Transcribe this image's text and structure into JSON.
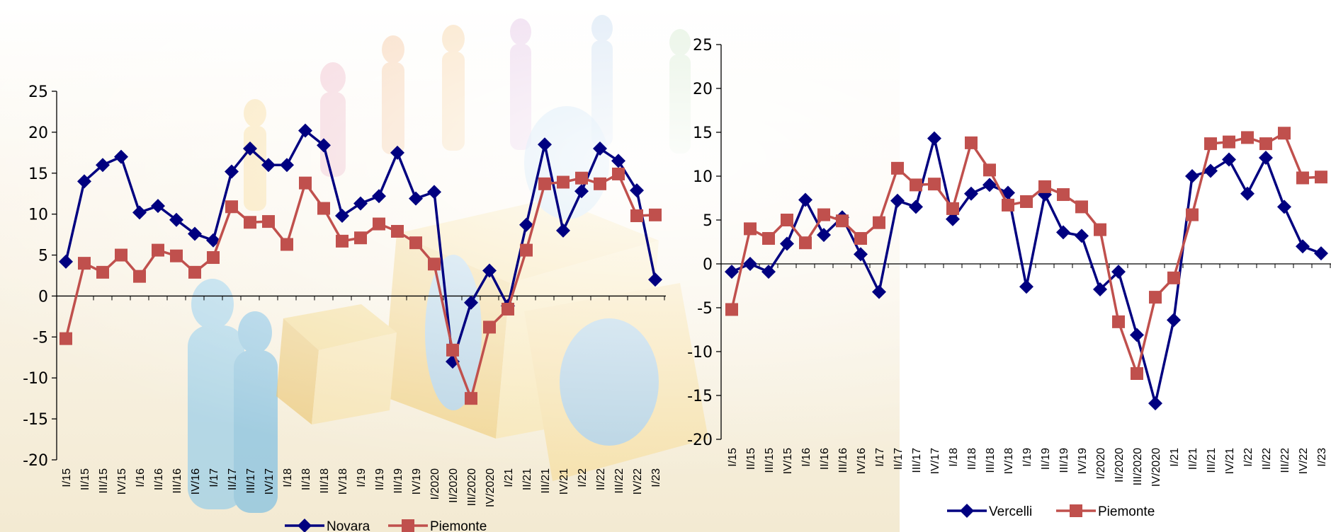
{
  "chart_data": [
    {
      "type": "line",
      "title": "",
      "xlabel": "",
      "ylabel": "",
      "ylim": [
        -20,
        25
      ],
      "yticks": [
        25,
        20,
        15,
        10,
        5,
        0,
        -5,
        -10,
        -15,
        -20
      ],
      "grid": false,
      "legend_position": "bottom",
      "categories": [
        "I/15",
        "II/15",
        "III/15",
        "IV/15",
        "I/16",
        "II/16",
        "III/16",
        "IV/16",
        "I/17",
        "II/17",
        "III/17",
        "IV/17",
        "I/18",
        "II/18",
        "III/18",
        "IV/18",
        "I/19",
        "II/19",
        "III/19",
        "IV/19",
        "I/2020",
        "II/2020",
        "III/2020",
        "IV/2020",
        "I/21",
        "II/21",
        "III/21",
        "IV/21",
        "I/22",
        "II/22",
        "III/22",
        "IV/22",
        "I/23"
      ],
      "series": [
        {
          "name": "Novara",
          "color": "#000080",
          "marker": "diamond",
          "values": [
            4.2,
            14,
            16,
            17,
            10.2,
            11,
            9.3,
            7.6,
            6.8,
            15.2,
            18,
            16,
            16,
            20.2,
            18.4,
            9.8,
            11.3,
            12.2,
            17.5,
            11.9,
            12.7,
            -8,
            -0.8,
            3.1,
            -1.2,
            8.7,
            18.5,
            8,
            12.8,
            18,
            16.5,
            12.9,
            2
          ]
        },
        {
          "name": "Piemonte",
          "color": "#C0504D",
          "marker": "square",
          "values": [
            -5.2,
            4,
            2.9,
            5,
            2.4,
            5.6,
            4.9,
            2.9,
            4.7,
            10.9,
            9,
            9.1,
            6.3,
            13.8,
            10.7,
            6.7,
            7.1,
            8.8,
            7.9,
            6.5,
            3.9,
            -6.6,
            -12.5,
            -3.8,
            -1.6,
            5.6,
            13.7,
            13.9,
            14.4,
            13.7,
            14.9,
            9.8,
            9.9
          ]
        }
      ]
    },
    {
      "type": "line",
      "title": "",
      "xlabel": "",
      "ylabel": "",
      "ylim": [
        -20,
        25
      ],
      "yticks": [
        25,
        20,
        15,
        10,
        5,
        0,
        -5,
        -10,
        -15,
        -20
      ],
      "grid": false,
      "legend_position": "bottom",
      "categories": [
        "I/15",
        "II/15",
        "III/15",
        "IV/15",
        "I/16",
        "II/16",
        "III/16",
        "IV/16",
        "I/17",
        "II/17",
        "III/17",
        "IV/17",
        "I/18",
        "II/18",
        "III/18",
        "IV/18",
        "I/19",
        "II/19",
        "III/19",
        "IV/19",
        "I/2020",
        "II/2020",
        "III/2020",
        "IV/2020",
        "I/21",
        "II/21",
        "III/21",
        "IV/21",
        "I/22",
        "II/22",
        "III/22",
        "IV/22",
        "I/23"
      ],
      "series": [
        {
          "name": "Vercelli",
          "color": "#000080",
          "marker": "diamond",
          "values": [
            -0.9,
            0,
            -0.9,
            2.3,
            7.3,
            3.3,
            5.3,
            1.1,
            -3.2,
            7.2,
            6.5,
            14.3,
            5.1,
            8,
            9,
            8.1,
            -2.6,
            7.9,
            3.6,
            3.2,
            -2.9,
            -0.9,
            -8.1,
            -15.9,
            -6.4,
            10,
            10.6,
            11.9,
            8,
            12.1,
            6.5,
            2,
            1.2
          ]
        },
        {
          "name": "Piemonte",
          "color": "#C0504D",
          "marker": "square",
          "values": [
            -5.2,
            4,
            2.9,
            5,
            2.4,
            5.6,
            4.9,
            2.9,
            4.7,
            10.9,
            9,
            9.1,
            6.3,
            13.8,
            10.7,
            6.7,
            7.1,
            8.8,
            7.9,
            6.5,
            3.9,
            -6.6,
            -12.5,
            -3.8,
            -1.6,
            5.6,
            13.7,
            13.9,
            14.4,
            13.7,
            14.9,
            9.8,
            9.9
          ]
        }
      ]
    }
  ]
}
